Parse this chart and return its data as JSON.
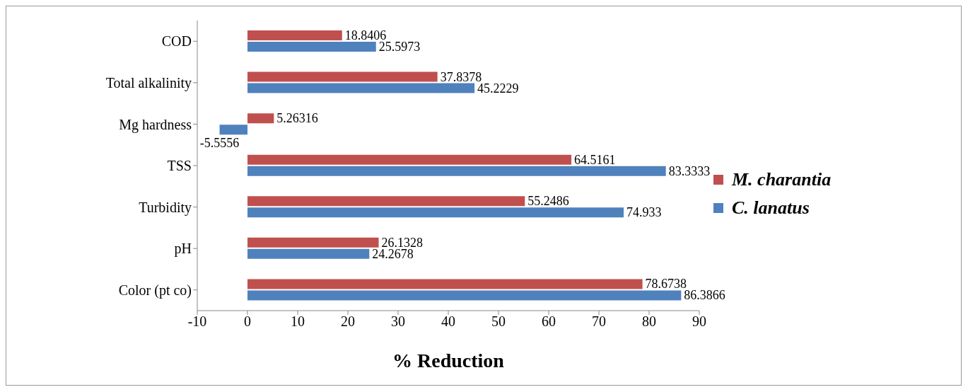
{
  "chart_data": {
    "type": "bar",
    "orientation": "horizontal",
    "xlabel": "% Reduction",
    "categories": [
      "COD",
      "Total alkalinity",
      "Mg hardness",
      "TSS",
      "Turbidity",
      "pH",
      "Color (pt co)"
    ],
    "series": [
      {
        "name": "M. charantia",
        "color": "#c0504d",
        "values": [
          18.8406,
          37.8378,
          5.26316,
          64.5161,
          55.2486,
          26.1328,
          78.6738
        ]
      },
      {
        "name": "C. lanatus",
        "color": "#4f81bd",
        "values": [
          25.5973,
          45.2229,
          -5.5556,
          83.3333,
          74.933,
          24.2678,
          86.3866
        ]
      }
    ],
    "xlim": [
      -10,
      90
    ],
    "xticks": [
      -10,
      0,
      10,
      20,
      30,
      40,
      50,
      60,
      70,
      80,
      90
    ],
    "data_labels": true,
    "grid": false,
    "legend": "right"
  }
}
